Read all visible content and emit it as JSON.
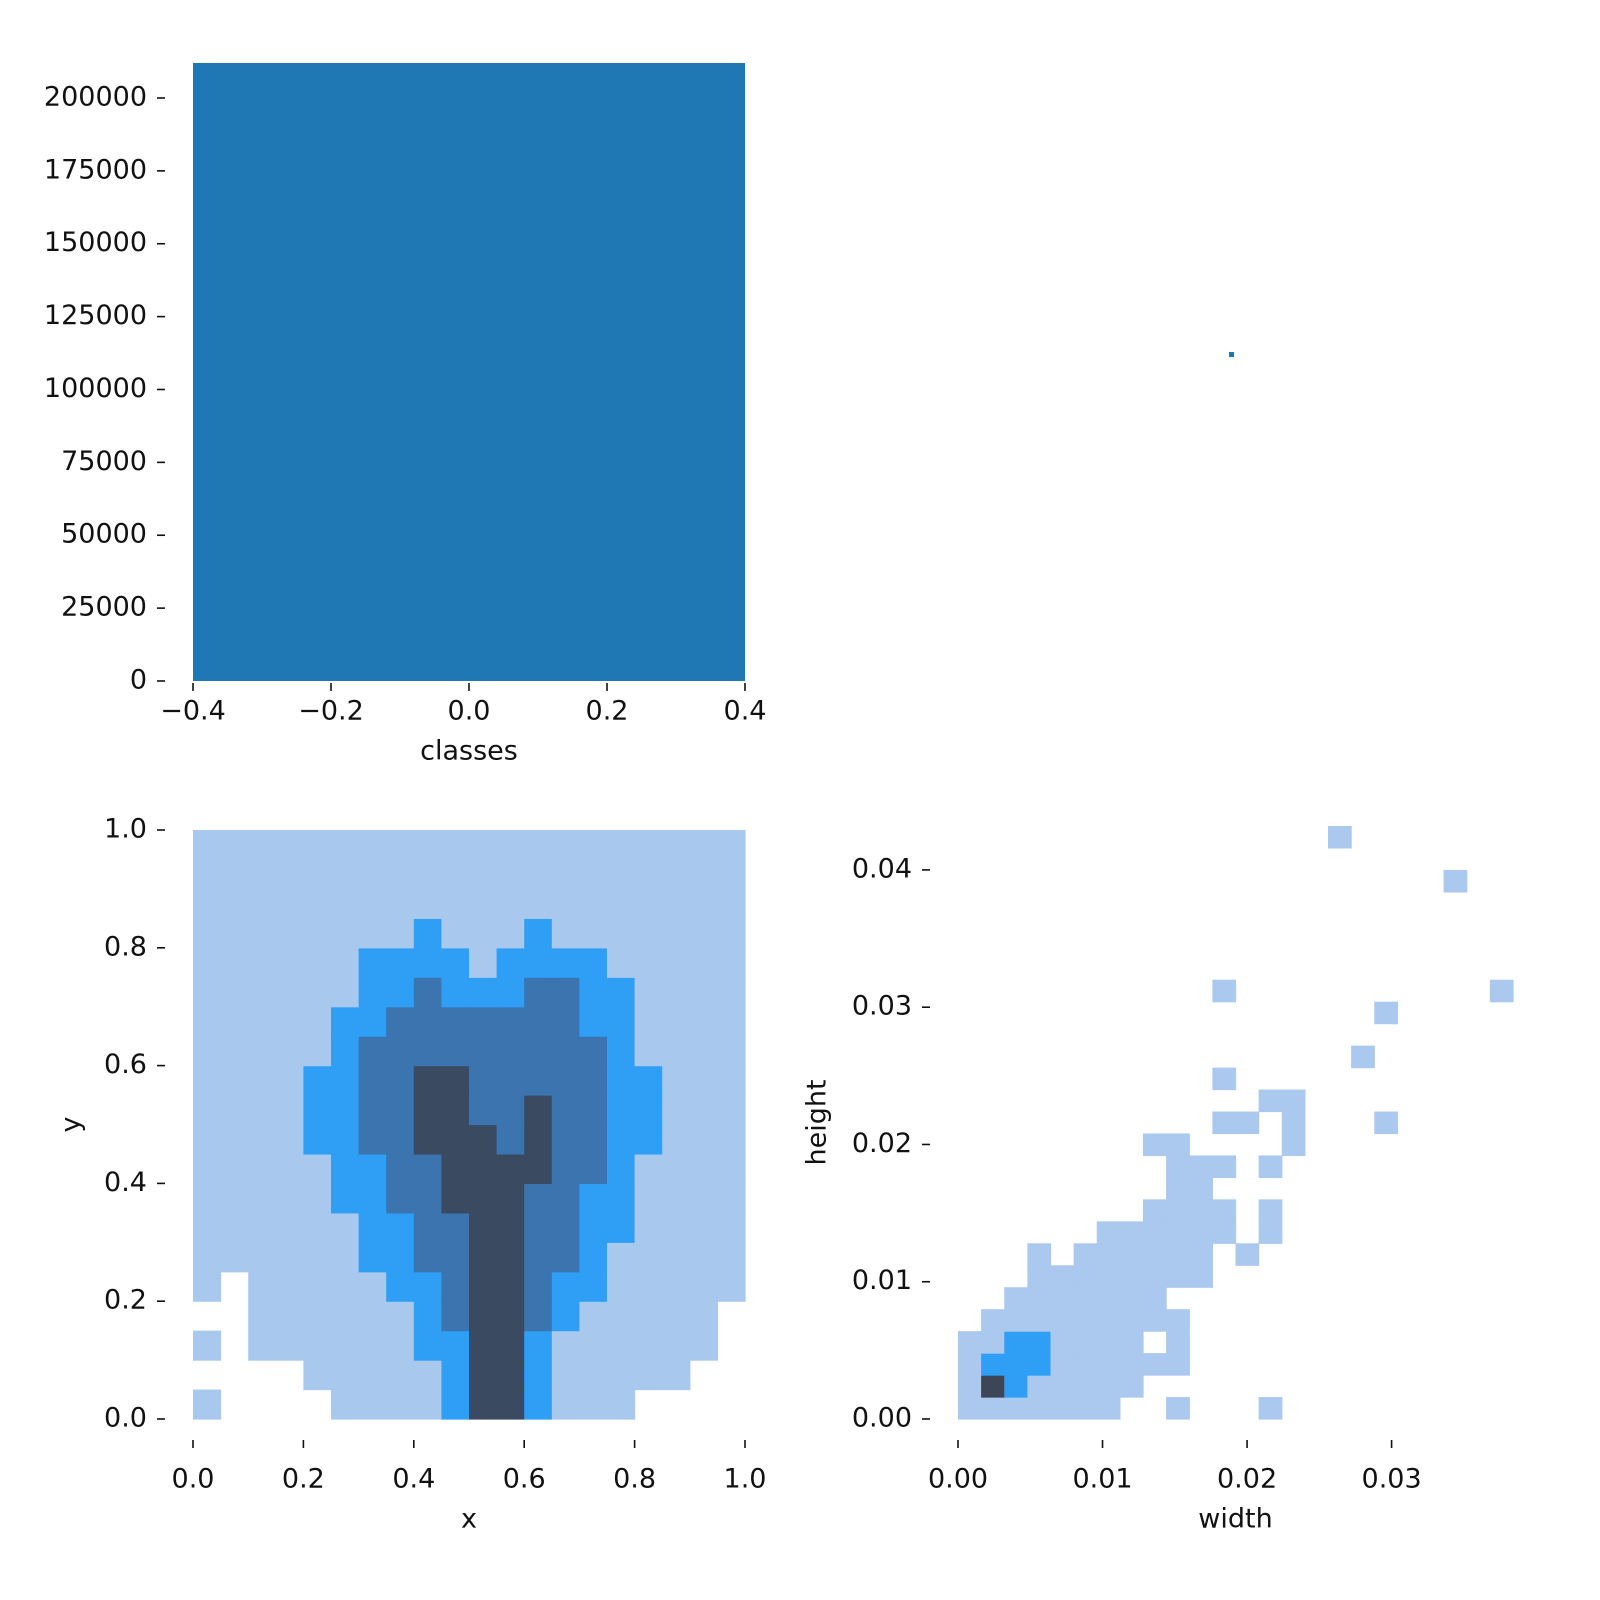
{
  "chart_data": [
    {
      "type": "histogram",
      "bins": [
        -0.4,
        0.4
      ],
      "values": [
        212000
      ],
      "color": "#1f77b4",
      "xlim": [
        -0.4,
        0.4
      ],
      "ylim": [
        0,
        212000
      ],
      "xticks": [
        {
          "value": -0.4,
          "label": "−0.4"
        },
        {
          "value": -0.2,
          "label": "−0.2"
        },
        {
          "value": 0,
          "label": "0.0"
        },
        0.2,
        0.4
      ],
      "yticks": [
        0,
        25000,
        50000,
        75000,
        100000,
        125000,
        150000,
        175000,
        200000
      ],
      "xlabel": "classes"
    },
    {
      "type": "heatmap",
      "xbins": [
        0,
        0.05,
        0.1,
        0.15,
        0.2,
        0.25,
        0.3,
        0.35,
        0.4,
        0.45,
        0.5,
        0.55,
        0.6,
        0.65,
        0.7,
        0.75,
        0.8,
        0.85,
        0.9,
        0.95,
        1
      ],
      "ybins": [
        0,
        0.05,
        0.1,
        0.15,
        0.2,
        0.25,
        0.3,
        0.35,
        0.4,
        0.45,
        0.5,
        0.55,
        0.6,
        0.65,
        0.7,
        0.75,
        0.8,
        0.85,
        0.9,
        0.95,
        1
      ],
      "values": [
        [
          1,
          0,
          0,
          0,
          0,
          1,
          1,
          1,
          1,
          2,
          4,
          4,
          2,
          1,
          1,
          1,
          0,
          0,
          0,
          0
        ],
        [
          0,
          0,
          0,
          0,
          1,
          1,
          1,
          1,
          1,
          2,
          4,
          4,
          2,
          1,
          1,
          1,
          1,
          1,
          0,
          0
        ],
        [
          1,
          0,
          1,
          1,
          1,
          1,
          1,
          1,
          2,
          2,
          4,
          4,
          2,
          1,
          1,
          1,
          1,
          1,
          1,
          0
        ],
        [
          0,
          0,
          1,
          1,
          1,
          1,
          1,
          1,
          2,
          3,
          4,
          4,
          3,
          2,
          1,
          1,
          1,
          1,
          1,
          0
        ],
        [
          1,
          0,
          1,
          1,
          1,
          1,
          1,
          2,
          2,
          3,
          4,
          4,
          3,
          2,
          2,
          1,
          1,
          1,
          1,
          1
        ],
        [
          1,
          1,
          1,
          1,
          1,
          1,
          2,
          2,
          3,
          3,
          4,
          4,
          3,
          3,
          2,
          1,
          1,
          1,
          1,
          1
        ],
        [
          1,
          1,
          1,
          1,
          1,
          1,
          2,
          2,
          3,
          3,
          4,
          4,
          3,
          3,
          2,
          2,
          1,
          1,
          1,
          1
        ],
        [
          1,
          1,
          1,
          1,
          1,
          2,
          2,
          3,
          3,
          4,
          4,
          4,
          3,
          3,
          2,
          2,
          1,
          1,
          1,
          1
        ],
        [
          1,
          1,
          1,
          1,
          1,
          2,
          2,
          3,
          3,
          4,
          4,
          4,
          4,
          3,
          3,
          2,
          1,
          1,
          1,
          1
        ],
        [
          1,
          1,
          1,
          1,
          2,
          2,
          3,
          3,
          4,
          4,
          4,
          3,
          4,
          3,
          3,
          2,
          2,
          1,
          1,
          1
        ],
        [
          1,
          1,
          1,
          1,
          2,
          2,
          3,
          3,
          4,
          4,
          3,
          3,
          4,
          3,
          3,
          2,
          2,
          1,
          1,
          1
        ],
        [
          1,
          1,
          1,
          1,
          2,
          2,
          3,
          3,
          4,
          4,
          3,
          3,
          3,
          3,
          3,
          2,
          2,
          1,
          1,
          1
        ],
        [
          1,
          1,
          1,
          1,
          1,
          2,
          3,
          3,
          3,
          3,
          3,
          3,
          3,
          3,
          3,
          2,
          1,
          1,
          1,
          1
        ],
        [
          1,
          1,
          1,
          1,
          1,
          2,
          2,
          3,
          3,
          3,
          3,
          3,
          3,
          3,
          2,
          2,
          1,
          1,
          1,
          1
        ],
        [
          1,
          1,
          1,
          1,
          1,
          1,
          2,
          2,
          3,
          2,
          2,
          2,
          3,
          3,
          2,
          2,
          1,
          1,
          1,
          1
        ],
        [
          1,
          1,
          1,
          1,
          1,
          1,
          2,
          2,
          2,
          2,
          1,
          2,
          2,
          2,
          2,
          1,
          1,
          1,
          1,
          1
        ],
        [
          1,
          1,
          1,
          1,
          1,
          1,
          1,
          1,
          2,
          1,
          1,
          1,
          2,
          1,
          1,
          1,
          1,
          1,
          1,
          1
        ],
        [
          1,
          1,
          1,
          1,
          1,
          1,
          1,
          1,
          1,
          1,
          1,
          1,
          1,
          1,
          1,
          1,
          1,
          1,
          1,
          1
        ],
        [
          1,
          1,
          1,
          1,
          1,
          1,
          1,
          1,
          1,
          1,
          1,
          1,
          1,
          1,
          1,
          1,
          1,
          1,
          1,
          1
        ],
        [
          1,
          1,
          1,
          1,
          1,
          1,
          1,
          1,
          1,
          1,
          1,
          1,
          1,
          1,
          1,
          1,
          1,
          1,
          1,
          1
        ]
      ],
      "colors": [
        "#a9c8ee",
        "#2f9ff5",
        "#3b74ae",
        "#3a4a60"
      ],
      "xlim": [
        0,
        1
      ],
      "ylim": [
        0,
        1
      ],
      "xticks": [
        {
          "value": 0,
          "label": "0.0"
        },
        0.2,
        0.4,
        0.6,
        0.8,
        {
          "value": 1,
          "label": "1.0"
        }
      ],
      "yticks": [
        {
          "value": 0,
          "label": "0.0"
        },
        0.2,
        0.4,
        0.6,
        0.8,
        {
          "value": 1,
          "label": "1.0"
        }
      ],
      "xlabel": "x",
      "ylabel": "y"
    },
    {
      "type": "heatmap",
      "xbins": [
        0,
        0.0016,
        0.0032,
        0.0048,
        0.0064,
        0.008,
        0.0096,
        0.0112,
        0.0128,
        0.0144,
        0.016,
        0.0176,
        0.0192,
        0.0208,
        0.0224,
        0.024,
        0.0256,
        0.0272,
        0.0288,
        0.0304,
        0.032,
        0.0336,
        0.0352,
        0.0368,
        0.0384
      ],
      "ybins": [
        0,
        0.0016,
        0.0032,
        0.0048,
        0.0064,
        0.008,
        0.0096,
        0.0112,
        0.0128,
        0.0144,
        0.016,
        0.0176,
        0.0192,
        0.0208,
        0.0224,
        0.024,
        0.0256,
        0.0272,
        0.0288,
        0.0304,
        0.032,
        0.0336,
        0.0352,
        0.0368,
        0.0384,
        0.04,
        0.0416,
        0.0432
      ],
      "values": [
        [
          1,
          1,
          1,
          1,
          1,
          1,
          1,
          0,
          0,
          1,
          0,
          0,
          0,
          1,
          0,
          0,
          0,
          0,
          0,
          0,
          0,
          0,
          0,
          0
        ],
        [
          1,
          4,
          2,
          1,
          1,
          1,
          1,
          1,
          0,
          0,
          0,
          0,
          0,
          0,
          0,
          0,
          0,
          0,
          0,
          0,
          0,
          0,
          0,
          0
        ],
        [
          1,
          2,
          2,
          2,
          1,
          1,
          1,
          1,
          1,
          1,
          0,
          0,
          0,
          0,
          0,
          0,
          0,
          0,
          0,
          0,
          0,
          0,
          0,
          0
        ],
        [
          1,
          1,
          2,
          2,
          1,
          1,
          1,
          1,
          0,
          1,
          0,
          0,
          0,
          0,
          0,
          0,
          0,
          0,
          0,
          0,
          0,
          0,
          0,
          0
        ],
        [
          0,
          1,
          1,
          1,
          1,
          1,
          1,
          1,
          1,
          1,
          0,
          0,
          0,
          0,
          0,
          0,
          0,
          0,
          0,
          0,
          0,
          0,
          0,
          0
        ],
        [
          0,
          0,
          1,
          1,
          1,
          1,
          1,
          1,
          1,
          0,
          0,
          0,
          0,
          0,
          0,
          0,
          0,
          0,
          0,
          0,
          0,
          0,
          0,
          0
        ],
        [
          0,
          0,
          0,
          1,
          1,
          1,
          1,
          1,
          1,
          1,
          1,
          0,
          0,
          0,
          0,
          0,
          0,
          0,
          0,
          0,
          0,
          0,
          0,
          0
        ],
        [
          0,
          0,
          0,
          1,
          0,
          1,
          1,
          1,
          1,
          1,
          1,
          0,
          1,
          0,
          0,
          0,
          0,
          0,
          0,
          0,
          0,
          0,
          0,
          0
        ],
        [
          0,
          0,
          0,
          0,
          0,
          0,
          1,
          1,
          1,
          1,
          1,
          1,
          0,
          1,
          0,
          0,
          0,
          0,
          0,
          0,
          0,
          0,
          0,
          0
        ],
        [
          0,
          0,
          0,
          0,
          0,
          0,
          0,
          0,
          1,
          1,
          1,
          1,
          0,
          1,
          0,
          0,
          0,
          0,
          0,
          0,
          0,
          0,
          0,
          0
        ],
        [
          0,
          0,
          0,
          0,
          0,
          0,
          0,
          0,
          0,
          1,
          1,
          0,
          0,
          0,
          0,
          0,
          0,
          0,
          0,
          0,
          0,
          0,
          0,
          0
        ],
        [
          0,
          0,
          0,
          0,
          0,
          0,
          0,
          0,
          0,
          1,
          1,
          1,
          0,
          1,
          0,
          0,
          0,
          0,
          0,
          0,
          0,
          0,
          0,
          0
        ],
        [
          0,
          0,
          0,
          0,
          0,
          0,
          0,
          0,
          1,
          1,
          0,
          0,
          0,
          0,
          1,
          0,
          0,
          0,
          0,
          0,
          0,
          0,
          0,
          0
        ],
        [
          0,
          0,
          0,
          0,
          0,
          0,
          0,
          0,
          0,
          0,
          0,
          1,
          1,
          0,
          1,
          0,
          0,
          0,
          1,
          0,
          0,
          0,
          0,
          0
        ],
        [
          0,
          0,
          0,
          0,
          0,
          0,
          0,
          0,
          0,
          0,
          0,
          0,
          0,
          1,
          1,
          0,
          0,
          0,
          0,
          0,
          0,
          0,
          0,
          0
        ],
        [
          0,
          0,
          0,
          0,
          0,
          0,
          0,
          0,
          0,
          0,
          0,
          1,
          0,
          0,
          0,
          0,
          0,
          0,
          0,
          0,
          0,
          0,
          0,
          0
        ],
        [
          0,
          0,
          0,
          0,
          0,
          0,
          0,
          0,
          0,
          0,
          0,
          0,
          0,
          0,
          0,
          0,
          0,
          1,
          0,
          0,
          0,
          0,
          0,
          0
        ],
        [
          0,
          0,
          0,
          0,
          0,
          0,
          0,
          0,
          0,
          0,
          0,
          0,
          0,
          0,
          0,
          0,
          0,
          0,
          0,
          0,
          0,
          0,
          0,
          0
        ],
        [
          0,
          0,
          0,
          0,
          0,
          0,
          0,
          0,
          0,
          0,
          0,
          0,
          0,
          0,
          0,
          0,
          0,
          0,
          1,
          0,
          0,
          0,
          0,
          0
        ],
        [
          0,
          0,
          0,
          0,
          0,
          0,
          0,
          0,
          0,
          0,
          0,
          1,
          0,
          0,
          0,
          0,
          0,
          0,
          0,
          0,
          0,
          0,
          0,
          1
        ],
        [
          0,
          0,
          0,
          0,
          0,
          0,
          0,
          0,
          0,
          0,
          0,
          0,
          0,
          0,
          0,
          0,
          0,
          0,
          0,
          0,
          0,
          0,
          0,
          0
        ],
        [
          0,
          0,
          0,
          0,
          0,
          0,
          0,
          0,
          0,
          0,
          0,
          0,
          0,
          0,
          0,
          0,
          0,
          0,
          0,
          0,
          0,
          0,
          0,
          0
        ],
        [
          0,
          0,
          0,
          0,
          0,
          0,
          0,
          0,
          0,
          0,
          0,
          0,
          0,
          0,
          0,
          0,
          0,
          0,
          0,
          0,
          0,
          0,
          0,
          0
        ],
        [
          0,
          0,
          0,
          0,
          0,
          0,
          0,
          0,
          0,
          0,
          0,
          0,
          0,
          0,
          0,
          0,
          0,
          0,
          0,
          0,
          0,
          0,
          0,
          0
        ],
        [
          0,
          0,
          0,
          0,
          0,
          0,
          0,
          0,
          0,
          0,
          0,
          0,
          0,
          0,
          0,
          0,
          0,
          0,
          0,
          0,
          0,
          1,
          0,
          0
        ],
        [
          0,
          0,
          0,
          0,
          0,
          0,
          0,
          0,
          0,
          0,
          0,
          0,
          0,
          0,
          0,
          0,
          0,
          0,
          0,
          0,
          0,
          0,
          0,
          0
        ],
        [
          0,
          0,
          0,
          0,
          0,
          0,
          0,
          0,
          0,
          0,
          0,
          0,
          0,
          0,
          0,
          0,
          1,
          0,
          0,
          0,
          0,
          0,
          0,
          0
        ]
      ],
      "colors": [
        "#abc8ee",
        "#2f9ff5",
        "#3b74ae",
        "#3c4656"
      ],
      "xlim": [
        0,
        0.0384
      ],
      "ylim": [
        0,
        0.0432
      ],
      "xticks": [
        {
          "value": 0,
          "label": "0.00"
        },
        0.01,
        0.02,
        0.03
      ],
      "yticks": [
        {
          "value": 0,
          "label": "0.00"
        },
        0.01,
        0.02,
        0.03,
        0.04
      ],
      "xlabel": "width",
      "ylabel": "height"
    }
  ]
}
